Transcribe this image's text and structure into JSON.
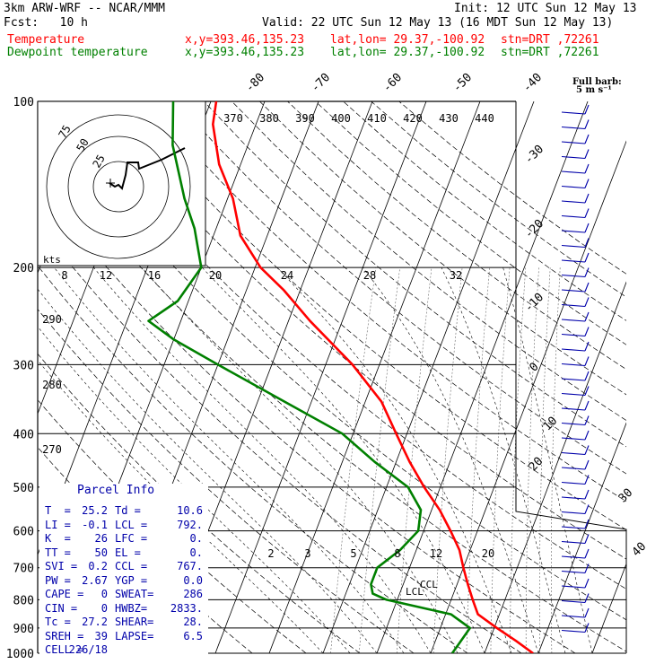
{
  "header": {
    "model": "3km ARW-WRF -- NCAR/MMM",
    "init": "Init: 12 UTC Sun 12 May 13",
    "fcst": "Fcst:   10 h",
    "valid": "Valid: 22 UTC Sun 12 May 13 (16 MDT Sun 12 May 13)",
    "line1": {
      "name": "Temperature",
      "xy": "x,y=393.46,135.23",
      "latlon": "lat,lon= 29.37,-100.92",
      "stn": "stn=DRT ,72261",
      "color": "#ff0000"
    },
    "line2": {
      "name": "Dewpoint temperature",
      "xy": "x,y=393.46,135.23",
      "latlon": "lat,lon= 29.37,-100.92",
      "stn": "stn=DRT ,72261",
      "color": "#008000"
    }
  },
  "barb_legend": {
    "title": "Full barb:",
    "value": "5 m s⁻¹"
  },
  "parcel_info": {
    "title": "Parcel Info",
    "rows": [
      [
        "T  =",
        "25.2",
        "Td =",
        "10.6"
      ],
      [
        "LI =",
        "-0.1",
        "LCL =",
        "792."
      ],
      [
        "K  =",
        "26",
        "LFC =",
        "0."
      ],
      [
        "TT =",
        "50",
        "EL =",
        "0."
      ],
      [
        "SVI =",
        "0.2",
        "CCL =",
        "767."
      ],
      [
        "PW =",
        "2.67",
        "YGP =",
        "0.0"
      ],
      [
        "CAPE =",
        "0",
        "SWEAT=",
        "286"
      ],
      [
        "CIN =",
        "0",
        "HWBZ=",
        "2833."
      ],
      [
        "Tc =",
        "27.2",
        "SHEAR=",
        "28."
      ],
      [
        "SREH =",
        "39",
        "LAPSE=",
        "6.5"
      ],
      [
        "CELL =",
        "226/18",
        "",
        ""
      ]
    ]
  },
  "labels": {
    "lcl": "LCL",
    "ccl": "CCL",
    "kts": "kts"
  },
  "chart_data": {
    "type": "line",
    "subtype": "skew-T log-p diagram",
    "y_axis": {
      "label": "",
      "scale": "log",
      "ticks": [
        100,
        200,
        300,
        400,
        500,
        600,
        700,
        800,
        900,
        1000
      ],
      "range": [
        1000,
        100
      ]
    },
    "isotherm_labels": [
      -80,
      -70,
      -60,
      -50,
      -40,
      -30,
      -20,
      -10,
      0,
      10,
      20,
      30,
      40
    ],
    "theta_e_labels": [
      370,
      380,
      390,
      400,
      410,
      420,
      430,
      440
    ],
    "mixing_ratio_labels_upper": [
      8,
      12,
      16,
      20,
      24,
      28,
      32
    ],
    "mixing_ratio_labels_lower": [
      2,
      3,
      5,
      8,
      12,
      20
    ],
    "dry_adiabat_labels": [
      290,
      280,
      270
    ],
    "series": [
      {
        "name": "Temperature",
        "color": "#ff0000",
        "points": [
          [
            1000,
            29
          ],
          [
            950,
            25
          ],
          [
            900,
            20.5
          ],
          [
            850,
            16
          ],
          [
            800,
            14
          ],
          [
            750,
            12
          ],
          [
            700,
            10
          ],
          [
            650,
            8
          ],
          [
            600,
            5
          ],
          [
            550,
            1.5
          ],
          [
            500,
            -3
          ],
          [
            450,
            -7.5
          ],
          [
            400,
            -12
          ],
          [
            350,
            -17
          ],
          [
            300,
            -25
          ],
          [
            250,
            -36
          ],
          [
            220,
            -43
          ],
          [
            200,
            -49
          ],
          [
            175,
            -55
          ],
          [
            150,
            -59
          ],
          [
            130,
            -64
          ],
          [
            110,
            -68
          ],
          [
            100,
            -69
          ]
        ]
      },
      {
        "name": "Dewpoint temperature",
        "color": "#008000",
        "points": [
          [
            1000,
            14
          ],
          [
            900,
            15.5
          ],
          [
            850,
            11
          ],
          [
            800,
            -2
          ],
          [
            780,
            -5
          ],
          [
            750,
            -6
          ],
          [
            700,
            -6
          ],
          [
            650,
            -3
          ],
          [
            600,
            -1
          ],
          [
            550,
            -2
          ],
          [
            500,
            -6
          ],
          [
            450,
            -14
          ],
          [
            400,
            -22
          ],
          [
            350,
            -35
          ],
          [
            300,
            -50
          ],
          [
            270,
            -60
          ],
          [
            250,
            -66
          ],
          [
            230,
            -62
          ],
          [
            200,
            -60
          ],
          [
            170,
            -64
          ],
          [
            150,
            -68
          ],
          [
            120,
            -74
          ],
          [
            100,
            -77
          ]
        ]
      }
    ],
    "hodograph": {
      "rings_kts": [
        25,
        50,
        75
      ],
      "labels": [
        "25",
        "50",
        "75"
      ]
    },
    "wind_barbs_note": "wind barbs plotted along right edge"
  }
}
